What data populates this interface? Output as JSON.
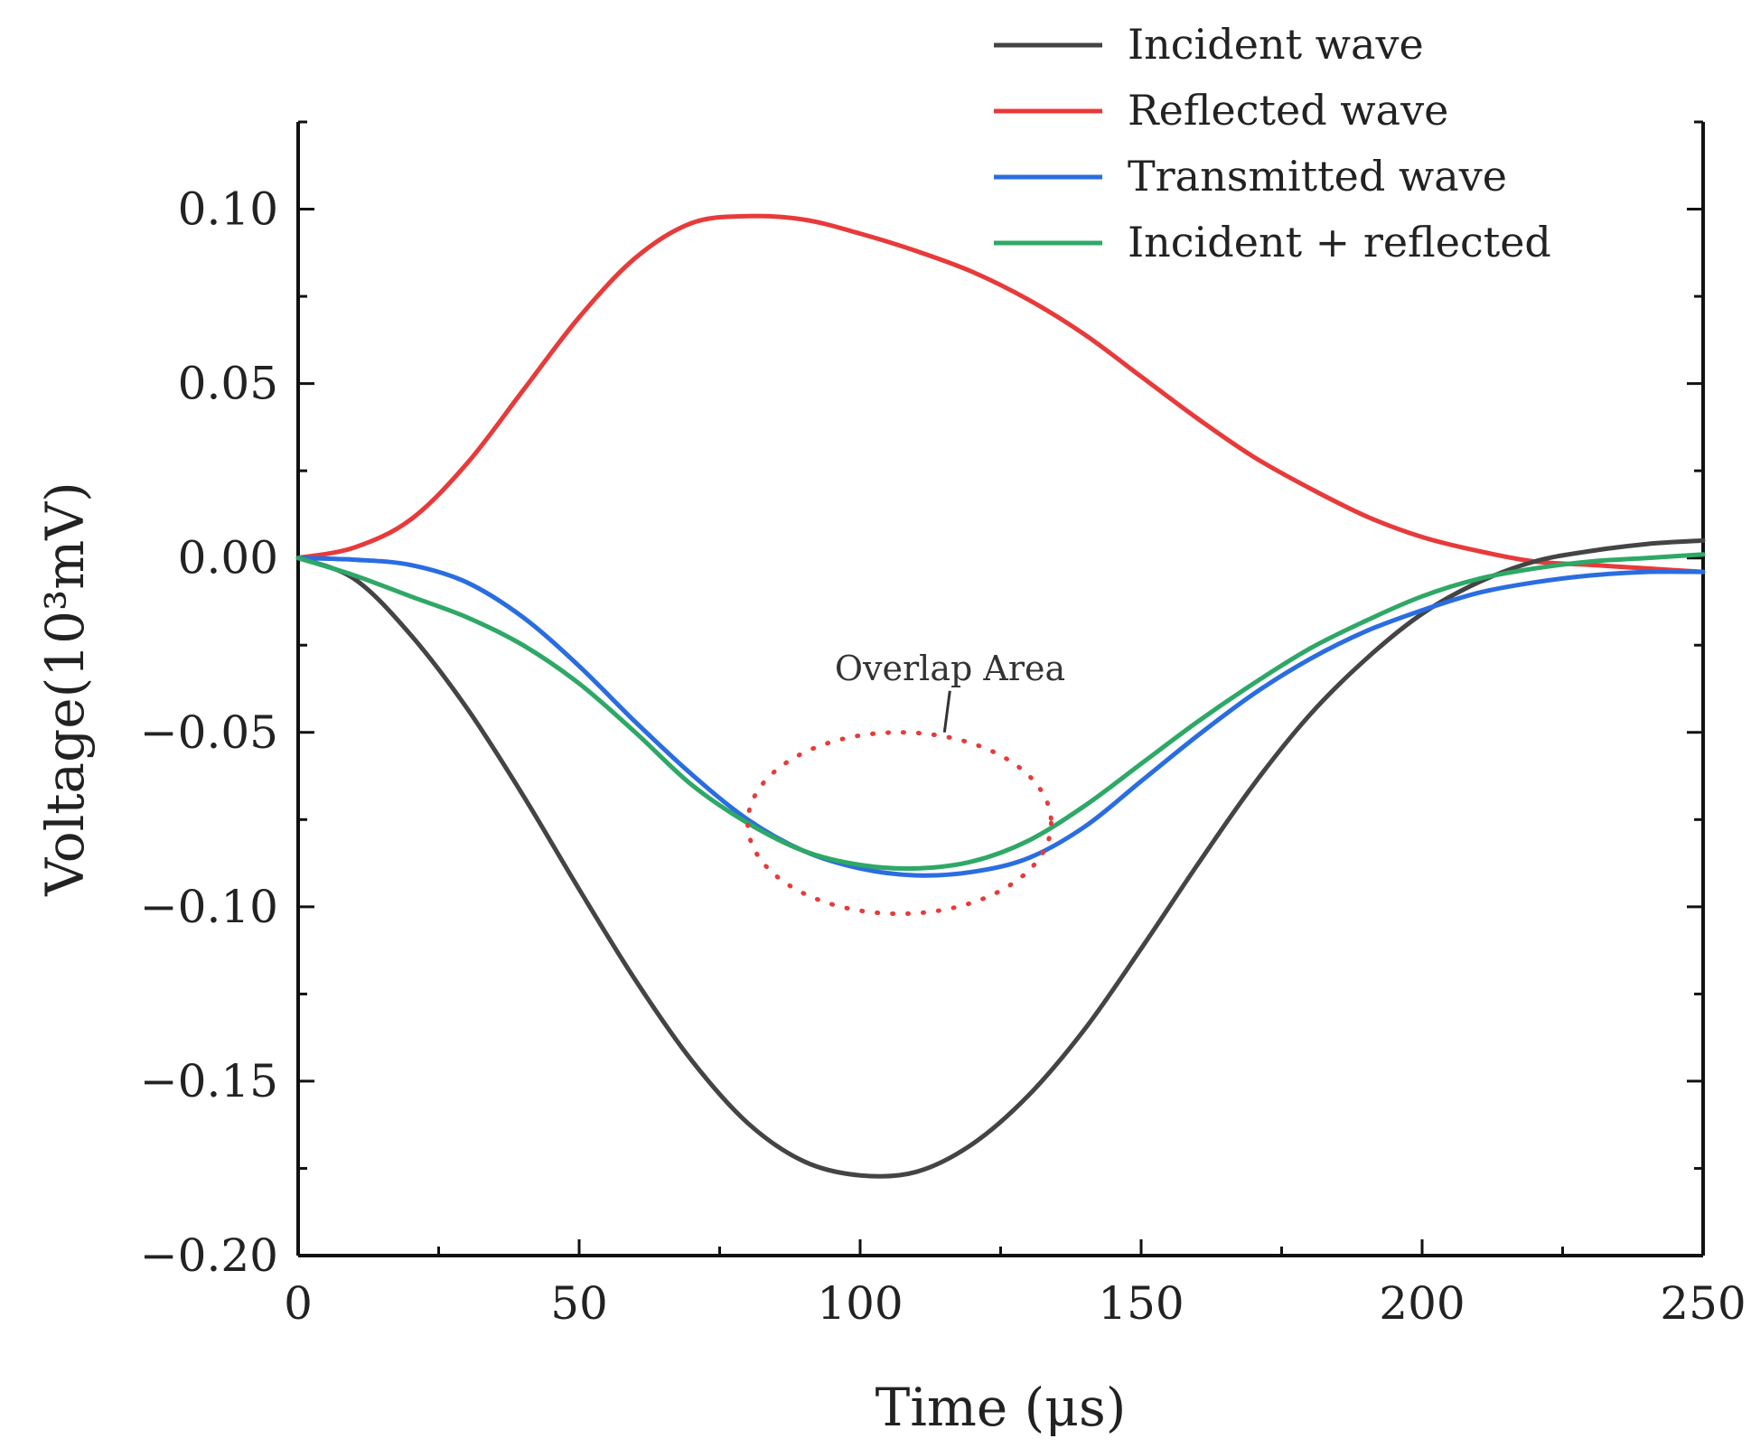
{
  "chart_data": {
    "type": "line",
    "title": "",
    "xlabel": "Time (μs)",
    "ylabel": "Voltage(10³mV)",
    "xlim": [
      0,
      250
    ],
    "ylim": [
      -0.2,
      0.125
    ],
    "x_ticks": [
      0,
      50,
      100,
      150,
      200,
      250
    ],
    "x_tick_labels": [
      "0",
      "50",
      "100",
      "150",
      "200",
      "250"
    ],
    "y_ticks": [
      -0.2,
      -0.15,
      -0.1,
      -0.05,
      0.0,
      0.05,
      0.1
    ],
    "y_tick_labels": [
      "−0.20",
      "−0.15",
      "−0.10",
      "−0.05",
      "0.00",
      "0.05",
      "0.10"
    ],
    "grid": false,
    "legend_position": "top-right",
    "x": [
      0,
      10,
      20,
      30,
      40,
      50,
      60,
      70,
      80,
      90,
      100,
      110,
      120,
      130,
      140,
      150,
      160,
      170,
      180,
      190,
      200,
      210,
      220,
      230,
      240,
      250
    ],
    "series": [
      {
        "name": "Incident wave",
        "color": "#444444",
        "values": [
          0.0,
          -0.006,
          -0.022,
          -0.043,
          -0.068,
          -0.095,
          -0.121,
          -0.144,
          -0.162,
          -0.173,
          -0.177,
          -0.176,
          -0.168,
          -0.154,
          -0.135,
          -0.112,
          -0.088,
          -0.065,
          -0.045,
          -0.029,
          -0.016,
          -0.007,
          -0.001,
          0.002,
          0.004,
          0.005
        ]
      },
      {
        "name": "Reflected wave",
        "color": "#e83a3a",
        "values": [
          0.0,
          0.003,
          0.011,
          0.027,
          0.048,
          0.069,
          0.086,
          0.096,
          0.098,
          0.097,
          0.093,
          0.088,
          0.082,
          0.074,
          0.064,
          0.052,
          0.04,
          0.029,
          0.02,
          0.012,
          0.006,
          0.002,
          -0.001,
          -0.002,
          -0.003,
          -0.004
        ]
      },
      {
        "name": "Transmitted wave",
        "color": "#2a6de0",
        "values": [
          0.0,
          -0.0005,
          -0.002,
          -0.007,
          -0.017,
          -0.031,
          -0.047,
          -0.062,
          -0.075,
          -0.084,
          -0.089,
          -0.091,
          -0.09,
          -0.086,
          -0.077,
          -0.064,
          -0.051,
          -0.039,
          -0.029,
          -0.021,
          -0.015,
          -0.01,
          -0.007,
          -0.005,
          -0.004,
          -0.004
        ]
      },
      {
        "name": "Incident + reflected",
        "color": "#2ea866",
        "values": [
          0.0,
          -0.005,
          -0.011,
          -0.017,
          -0.025,
          -0.036,
          -0.05,
          -0.065,
          -0.076,
          -0.084,
          -0.088,
          -0.089,
          -0.087,
          -0.081,
          -0.071,
          -0.059,
          -0.047,
          -0.036,
          -0.026,
          -0.018,
          -0.011,
          -0.006,
          -0.003,
          -0.001,
          0.0,
          0.001
        ]
      }
    ],
    "annotations": [
      {
        "text": "Overlap Area",
        "ellipse_center": [
          107,
          -0.076
        ],
        "ellipse_radii": [
          27,
          0.026
        ],
        "label_anchor": [
          116,
          -0.035
        ],
        "leader_end": [
          115,
          -0.05
        ],
        "style": "dotted",
        "color": "#e83a3a"
      }
    ]
  }
}
